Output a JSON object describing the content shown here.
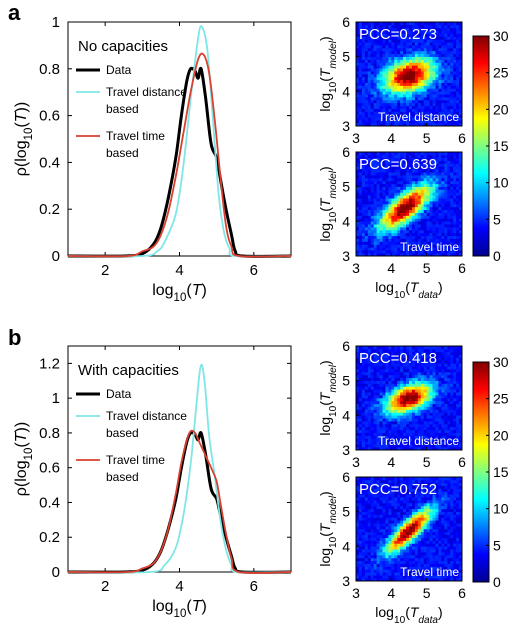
{
  "panels": [
    {
      "letter": "a",
      "legend_title": "No capacities",
      "legend": [
        {
          "label": [
            "Data"
          ],
          "color": "#000000"
        },
        {
          "label": [
            "Travel distance",
            "based"
          ],
          "color": "#7fe6e6"
        },
        {
          "label": [
            "Travel time",
            "based"
          ],
          "color": "#d9402f"
        }
      ],
      "heatmaps": [
        {
          "pcc": "PCC=0.273",
          "caption": "Travel distance"
        },
        {
          "pcc": "PCC=0.639",
          "caption": "Travel time"
        }
      ]
    },
    {
      "letter": "b",
      "legend_title": "With capacities",
      "legend": [
        {
          "label": [
            "Data"
          ],
          "color": "#000000"
        },
        {
          "label": [
            "Travel distance",
            "based"
          ],
          "color": "#7fe6e6"
        },
        {
          "label": [
            "Travel time",
            "based"
          ],
          "color": "#d9402f"
        }
      ],
      "heatmaps": [
        {
          "pcc": "PCC=0.418",
          "caption": "Travel distance"
        },
        {
          "pcc": "PCC=0.752",
          "caption": "Travel time"
        }
      ]
    }
  ],
  "axis_text": {
    "density_ylabel": "ρ(log10(T))",
    "density_xlabel": "log10(T)",
    "heat_ylabel": "log10(Tmodel)",
    "heat_xlabel": "log10(Tdata)"
  },
  "chart_data": [
    {
      "type": "line",
      "panel": "a",
      "title": "No capacities",
      "xlabel": "log10(T)",
      "ylabel": "ρ(log10(T))",
      "xlim": [
        1,
        7
      ],
      "ylim": [
        0,
        1
      ],
      "xticks": [
        2,
        4,
        6
      ],
      "yticks": [
        0,
        0.2,
        0.4,
        0.6,
        0.8,
        1
      ],
      "series": [
        {
          "name": "Data",
          "color": "#000000",
          "x": [
            1,
            2.5,
            3,
            3.3,
            3.5,
            3.7,
            3.9,
            4.05,
            4.2,
            4.3,
            4.42,
            4.5,
            4.58,
            4.7,
            4.85,
            5.0,
            5.1,
            5.25,
            5.4,
            5.5,
            5.7,
            7
          ],
          "y": [
            0,
            0,
            0.01,
            0.05,
            0.12,
            0.25,
            0.42,
            0.6,
            0.75,
            0.8,
            0.79,
            0.76,
            0.8,
            0.68,
            0.48,
            0.42,
            0.33,
            0.2,
            0.09,
            0.02,
            0,
            0
          ]
        },
        {
          "name": "Travel distance based",
          "color": "#7fe6e6",
          "x": [
            1,
            3,
            3.4,
            3.6,
            3.9,
            4.1,
            4.3,
            4.5,
            4.6,
            4.75,
            4.9,
            5.05,
            5.2,
            5.35,
            5.5,
            7
          ],
          "y": [
            0,
            0,
            0.02,
            0.06,
            0.18,
            0.38,
            0.67,
            0.93,
            0.98,
            0.88,
            0.58,
            0.27,
            0.1,
            0.03,
            0,
            0
          ]
        },
        {
          "name": "Travel time based",
          "color": "#d9402f",
          "x": [
            1,
            2.6,
            3.0,
            3.3,
            3.5,
            3.7,
            3.9,
            4.1,
            4.3,
            4.5,
            4.65,
            4.8,
            4.95,
            5.1,
            5.25,
            5.4,
            5.6,
            7
          ],
          "y": [
            0,
            0,
            0.02,
            0.04,
            0.09,
            0.19,
            0.34,
            0.52,
            0.7,
            0.84,
            0.86,
            0.78,
            0.58,
            0.34,
            0.13,
            0.04,
            0,
            0
          ]
        }
      ]
    },
    {
      "type": "line",
      "panel": "b",
      "title": "With capacities",
      "xlabel": "log10(T)",
      "ylabel": "ρ(log10(T))",
      "xlim": [
        1,
        7
      ],
      "ylim": [
        0,
        1.3
      ],
      "xticks": [
        2,
        4,
        6
      ],
      "yticks": [
        0,
        0.2,
        0.4,
        0.6,
        0.8,
        1,
        1.2
      ],
      "series": [
        {
          "name": "Data",
          "color": "#000000",
          "x": [
            1,
            2.5,
            3,
            3.3,
            3.5,
            3.7,
            3.9,
            4.05,
            4.2,
            4.3,
            4.42,
            4.5,
            4.58,
            4.7,
            4.85,
            5.0,
            5.1,
            5.25,
            5.4,
            5.5,
            5.7,
            7
          ],
          "y": [
            0,
            0,
            0.01,
            0.05,
            0.12,
            0.25,
            0.42,
            0.6,
            0.75,
            0.8,
            0.79,
            0.76,
            0.8,
            0.68,
            0.48,
            0.42,
            0.33,
            0.2,
            0.09,
            0.02,
            0,
            0
          ]
        },
        {
          "name": "Travel distance based",
          "color": "#7fe6e6",
          "x": [
            1,
            3.2,
            3.6,
            3.9,
            4.1,
            4.3,
            4.45,
            4.55,
            4.62,
            4.7,
            4.8,
            4.95,
            5.1,
            5.25,
            5.4,
            5.55,
            7
          ],
          "y": [
            0,
            0,
            0.04,
            0.14,
            0.32,
            0.62,
            0.95,
            1.16,
            1.18,
            1.04,
            0.78,
            0.55,
            0.3,
            0.13,
            0.04,
            0,
            0
          ]
        },
        {
          "name": "Travel time based",
          "color": "#d9402f",
          "x": [
            1,
            2.6,
            3.0,
            3.3,
            3.5,
            3.7,
            3.9,
            4.05,
            4.2,
            4.3,
            4.42,
            4.55,
            4.7,
            4.85,
            5.0,
            5.1,
            5.25,
            5.4,
            5.6,
            7
          ],
          "y": [
            0,
            0,
            0.02,
            0.05,
            0.12,
            0.25,
            0.45,
            0.63,
            0.76,
            0.81,
            0.8,
            0.74,
            0.67,
            0.6,
            0.52,
            0.4,
            0.22,
            0.08,
            0,
            0
          ]
        }
      ]
    },
    {
      "type": "heatmap",
      "panel": "a",
      "pcc": 0.273,
      "caption": "Travel distance",
      "xlim": [
        3,
        6
      ],
      "ylim": [
        3,
        6
      ],
      "xticks": [
        3,
        4,
        5,
        6
      ],
      "yticks": [
        3,
        4,
        5,
        6
      ],
      "center": [
        4.5,
        4.45
      ],
      "spread": [
        0.5,
        0.35
      ],
      "correlation": 0.3
    },
    {
      "type": "heatmap",
      "panel": "a",
      "pcc": 0.639,
      "caption": "Travel time",
      "xlim": [
        3,
        6
      ],
      "ylim": [
        3,
        6
      ],
      "xticks": [
        3,
        4,
        5,
        6
      ],
      "yticks": [
        3,
        4,
        5,
        6
      ],
      "center": [
        4.4,
        4.4
      ],
      "spread": [
        0.5,
        0.45
      ],
      "correlation": 0.75
    },
    {
      "type": "heatmap",
      "panel": "b",
      "pcc": 0.418,
      "caption": "Travel distance",
      "xlim": [
        3,
        6
      ],
      "ylim": [
        3,
        6
      ],
      "xticks": [
        3,
        4,
        5,
        6
      ],
      "yticks": [
        3,
        4,
        5,
        6
      ],
      "center": [
        4.5,
        4.5
      ],
      "spread": [
        0.45,
        0.3
      ],
      "correlation": 0.45
    },
    {
      "type": "heatmap",
      "panel": "b",
      "pcc": 0.752,
      "caption": "Travel time",
      "xlim": [
        3,
        6
      ],
      "ylim": [
        3,
        6
      ],
      "xticks": [
        3,
        4,
        5,
        6
      ],
      "yticks": [
        3,
        4,
        5,
        6
      ],
      "center": [
        4.5,
        4.45
      ],
      "spread": [
        0.45,
        0.45
      ],
      "correlation": 0.85
    },
    {
      "type": "colorbar",
      "ylim": [
        0,
        30
      ],
      "yticks": [
        0,
        5,
        10,
        15,
        20,
        25,
        30
      ],
      "colormap": "jet"
    }
  ]
}
